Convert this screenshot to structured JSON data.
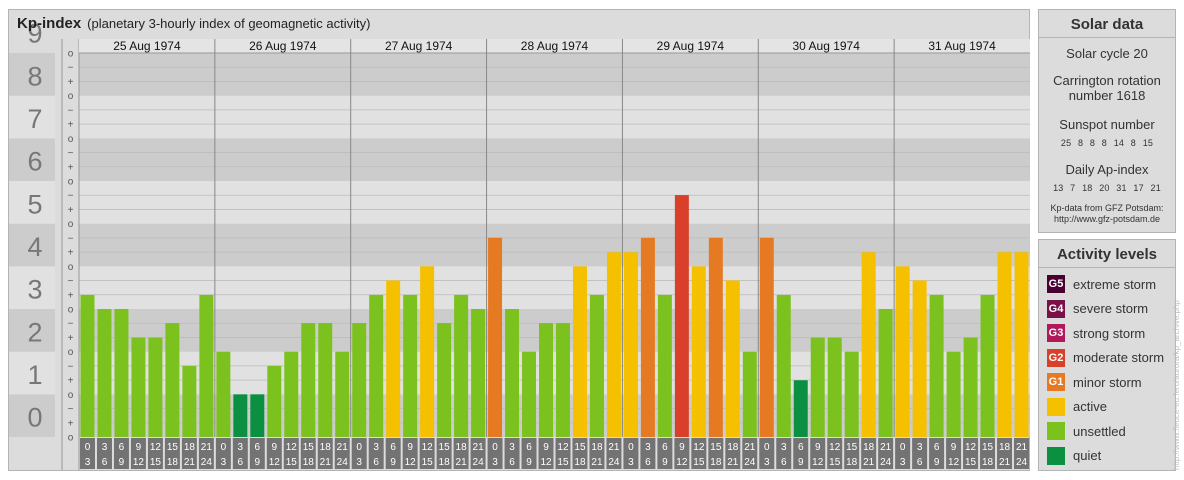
{
  "header": {
    "title": "Kp-index",
    "subtitle": "(planetary 3-hourly index of geomagnetic activity)"
  },
  "chart_data": {
    "type": "bar",
    "title": "Kp-index",
    "subtitle": "(planetary 3-hourly index of geomagnetic activity)",
    "ylim": [
      0,
      9
    ],
    "y_ticks": [
      "0",
      "1",
      "2",
      "3",
      "4",
      "5",
      "6",
      "7",
      "8",
      "9"
    ],
    "minor_ticks": [
      "o",
      "+",
      "−"
    ],
    "days": [
      "25 Aug 1974",
      "26 Aug 1974",
      "27 Aug 1974",
      "28 Aug 1974",
      "29 Aug 1974",
      "30 Aug 1974",
      "31 Aug 1974"
    ],
    "hour_starts": [
      "0",
      "3",
      "6",
      "9",
      "12",
      "15",
      "18",
      "21"
    ],
    "hour_ends": [
      "3",
      "6",
      "9",
      "12",
      "15",
      "18",
      "21",
      "24"
    ],
    "values": [
      3.33,
      3.0,
      3.0,
      2.33,
      2.33,
      2.67,
      1.67,
      3.33,
      2.0,
      1.0,
      1.0,
      1.67,
      2.0,
      2.67,
      2.67,
      2.0,
      2.67,
      3.33,
      3.67,
      3.33,
      4.0,
      2.67,
      3.33,
      3.0,
      4.67,
      3.0,
      2.0,
      2.67,
      2.67,
      4.0,
      3.33,
      4.33,
      4.33,
      4.67,
      3.33,
      5.67,
      4.0,
      4.67,
      3.67,
      2.0,
      4.67,
      3.33,
      1.33,
      2.33,
      2.33,
      2.0,
      4.33,
      3.0,
      4.0,
      3.67,
      3.33,
      2.0,
      2.33,
      3.33,
      4.33,
      4.33
    ]
  },
  "solar_data": {
    "title": "Solar data",
    "cycle": "Solar cycle 20",
    "carrington_line1": "Carrington rotation",
    "carrington_line2": "number 1618",
    "sunspot_label": "Sunspot number",
    "sunspot_values": "25 8 8 8 14 8 15",
    "ap_label": "Daily Ap-index",
    "ap_values": "13 7 18 20 31 17 21",
    "source_line1": "Kp-data from GFZ Potsdam:",
    "source_line2": "http://www.gfz-potsdam.de"
  },
  "activity_levels": {
    "title": "Activity levels",
    "items": [
      {
        "code": "G5",
        "label": "extreme storm",
        "color": "#4a0030"
      },
      {
        "code": "G4",
        "label": "severe storm",
        "color": "#7a1048"
      },
      {
        "code": "G3",
        "label": "strong storm",
        "color": "#b0185a"
      },
      {
        "code": "G2",
        "label": "moderate storm",
        "color": "#d8402a"
      },
      {
        "code": "G1",
        "label": "minor storm",
        "color": "#e67a22"
      },
      {
        "code": "",
        "label": "active",
        "color": "#f5c000"
      },
      {
        "code": "",
        "label": "unsettled",
        "color": "#7cc21e"
      },
      {
        "code": "",
        "label": "quiet",
        "color": "#0a9040"
      }
    ]
  },
  "watermark": "http://www.fleuce-eu.fero/aurora/kp_archive.php"
}
